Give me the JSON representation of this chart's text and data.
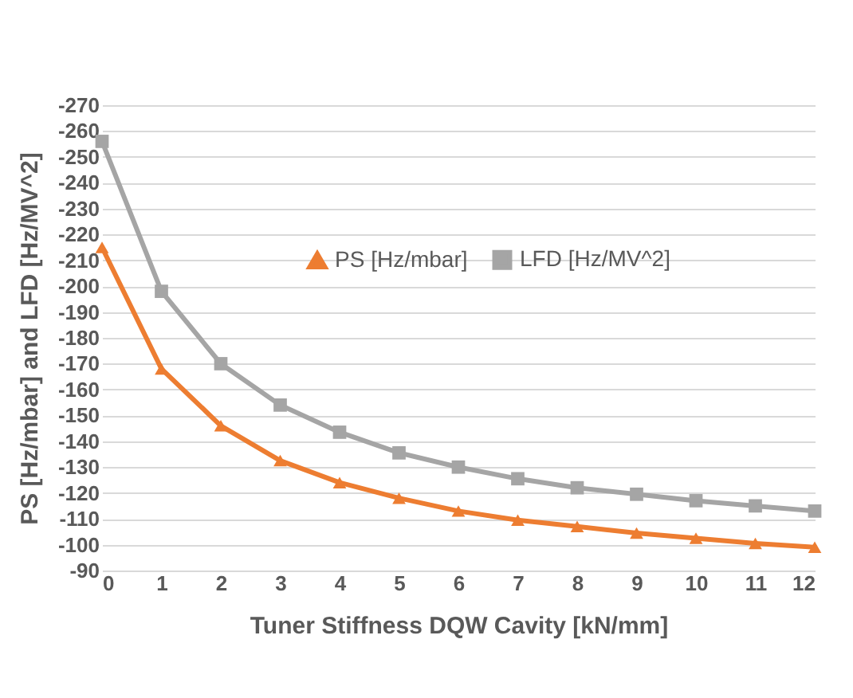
{
  "chart_data": {
    "type": "line",
    "xlabel": "Tuner Stiffness DQW Cavity [kN/mm]",
    "ylabel": "PS [Hz/mbar] and LFD [Hz/MV^2]",
    "x": [
      0,
      1,
      2,
      3,
      4,
      5,
      6,
      7,
      8,
      9,
      10,
      11,
      12
    ],
    "xlim": [
      0,
      12
    ],
    "xticks": [
      0,
      1,
      2,
      3,
      4,
      5,
      6,
      7,
      8,
      9,
      10,
      11,
      12
    ],
    "ylim": [
      -90,
      -270
    ],
    "yticks": [
      -90,
      -100,
      -110,
      -120,
      -130,
      -140,
      -150,
      -160,
      -170,
      -180,
      -190,
      -200,
      -210,
      -220,
      -230,
      -240,
      -250,
      -260,
      -270
    ],
    "grid": "y",
    "legend": "top right",
    "series": [
      {
        "name": "PS [Hz/mbar]",
        "color": "#ed7d31",
        "marker": "triangle",
        "values": [
          -215,
          -168,
          -146,
          -132.5,
          -124,
          -118,
          -113,
          -109.5,
          -107,
          -104.5,
          -102.5,
          -100.5,
          -99
        ]
      },
      {
        "name": "LFD [Hz/MV^2]",
        "color": "#a5a5a5",
        "marker": "square",
        "values": [
          -256,
          -198,
          -170,
          -154,
          -143.5,
          -135.5,
          -130,
          -125.5,
          -122,
          -119.5,
          -117,
          -115,
          -113
        ]
      }
    ]
  }
}
